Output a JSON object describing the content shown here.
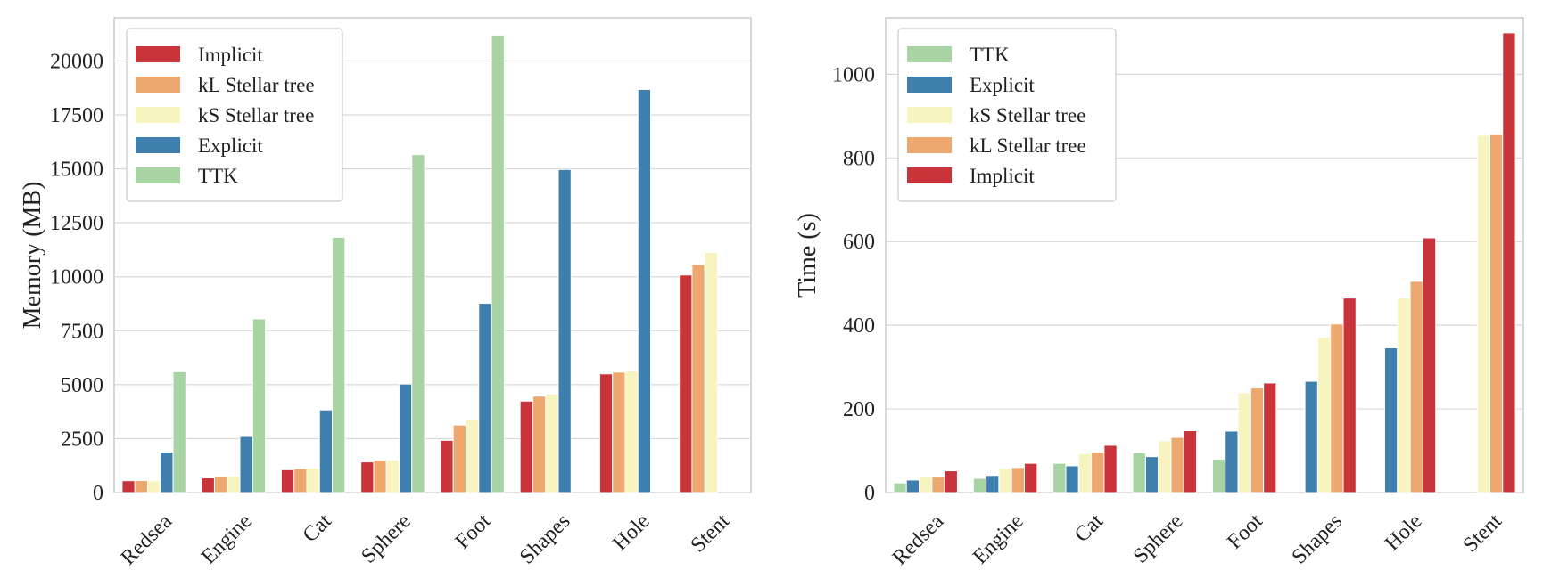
{
  "colors": {
    "Implicit": "#c9343a",
    "kL Stellar tree": "#eca86f",
    "kS Stellar tree": "#f7f4c0",
    "Explicit": "#3f7fae",
    "TTK": "#a8d4a4",
    "grid": "#d9d9d9",
    "frame": "#bdbdbd"
  },
  "chart_data": [
    {
      "type": "bar",
      "ylabel": "Memory (MB)",
      "xlabel": "",
      "title": "",
      "ylim": [
        0,
        22000
      ],
      "yticks": [
        0,
        2500,
        5000,
        7500,
        10000,
        12500,
        15000,
        17500,
        20000
      ],
      "grid": true,
      "legend_position": "top-left",
      "categories": [
        "Redsea",
        "Engine",
        "Cat",
        "Sphere",
        "Foot",
        "Shapes",
        "Hole",
        "Stent"
      ],
      "series": [
        {
          "name": "Implicit",
          "values": [
            550,
            680,
            1060,
            1420,
            2420,
            4240,
            5500,
            10080
          ]
        },
        {
          "name": "kL Stellar tree",
          "values": [
            560,
            730,
            1110,
            1510,
            3130,
            4470,
            5580,
            10570
          ]
        },
        {
          "name": "kS Stellar tree",
          "values": [
            540,
            760,
            1140,
            1510,
            3370,
            4580,
            5640,
            11130
          ]
        },
        {
          "name": "Explicit",
          "values": [
            1880,
            2600,
            3830,
            5030,
            8770,
            14970,
            18680,
            null
          ]
        },
        {
          "name": "TTK",
          "values": [
            5600,
            8050,
            11830,
            15660,
            21200,
            null,
            null,
            null
          ]
        }
      ]
    },
    {
      "type": "bar",
      "ylabel": "Time (s)",
      "xlabel": "",
      "title": "",
      "ylim": [
        0,
        1135
      ],
      "yticks": [
        0,
        200,
        400,
        600,
        800,
        1000
      ],
      "grid": true,
      "legend_position": "top-left",
      "categories": [
        "Redsea",
        "Engine",
        "Cat",
        "Sphere",
        "Foot",
        "Shapes",
        "Hole",
        "Stent"
      ],
      "series": [
        {
          "name": "TTK",
          "values": [
            23,
            34,
            70,
            95,
            80,
            null,
            null,
            null
          ]
        },
        {
          "name": "Explicit",
          "values": [
            30,
            41,
            64,
            86,
            147,
            266,
            346,
            null
          ]
        },
        {
          "name": "kS Stellar tree",
          "values": [
            37,
            58,
            93,
            124,
            239,
            371,
            465,
            854
          ]
        },
        {
          "name": "kL Stellar tree",
          "values": [
            37,
            60,
            97,
            132,
            250,
            403,
            505,
            856
          ]
        },
        {
          "name": "Implicit",
          "values": [
            52,
            70,
            113,
            148,
            262,
            465,
            609,
            1099
          ]
        }
      ]
    }
  ]
}
